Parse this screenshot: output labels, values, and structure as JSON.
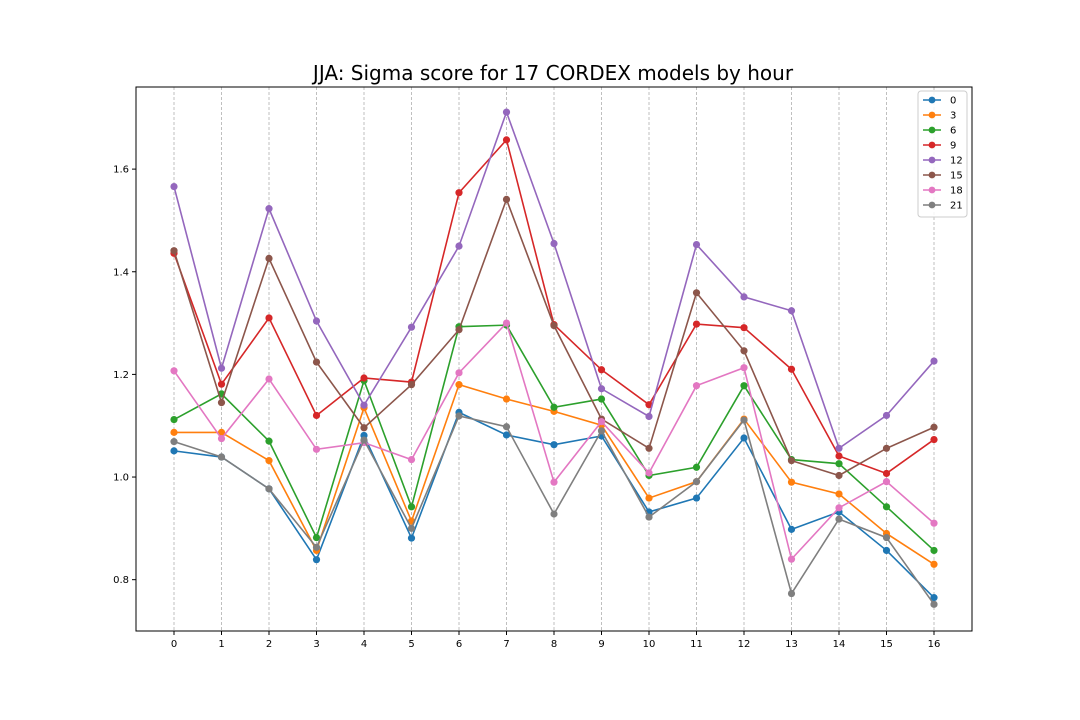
{
  "chart_data": {
    "type": "line",
    "title": "JJA: Sigma score for 17 CORDEX models by hour",
    "xlabel": "",
    "ylabel": "",
    "x": [
      0,
      1,
      2,
      3,
      4,
      5,
      6,
      7,
      8,
      9,
      10,
      11,
      12,
      13,
      14,
      15,
      16
    ],
    "xlim": [
      -0.8,
      16.8
    ],
    "ylim": [
      0.7,
      1.76
    ],
    "yticks": [
      0.8,
      1.0,
      1.2,
      1.4,
      1.6
    ],
    "ytick_labels": [
      "0.8",
      "1.0",
      "1.2",
      "1.4",
      "1.6"
    ],
    "xticks": [
      0,
      1,
      2,
      3,
      4,
      5,
      6,
      7,
      8,
      9,
      10,
      11,
      12,
      13,
      14,
      15,
      16
    ],
    "xtick_labels": [
      "0",
      "1",
      "2",
      "3",
      "4",
      "5",
      "6",
      "7",
      "8",
      "9",
      "10",
      "11",
      "12",
      "13",
      "14",
      "15",
      "16"
    ],
    "grid": "x-axis dashed",
    "legend_position": "top-right",
    "series": [
      {
        "name": "0",
        "color": "#1f77b4",
        "values": [
          1.051,
          1.039,
          0.977,
          0.839,
          1.081,
          0.881,
          1.126,
          1.082,
          1.063,
          1.08,
          0.932,
          0.959,
          1.076,
          0.898,
          0.932,
          0.857,
          0.765
        ]
      },
      {
        "name": "3",
        "color": "#ff7f0e",
        "values": [
          1.087,
          1.087,
          1.032,
          0.857,
          1.135,
          0.914,
          1.18,
          1.152,
          1.128,
          1.101,
          0.959,
          0.991,
          1.113,
          0.99,
          0.967,
          0.89,
          0.83
        ]
      },
      {
        "name": "6",
        "color": "#2ca02c",
        "values": [
          1.112,
          1.162,
          1.07,
          0.882,
          1.188,
          0.942,
          1.293,
          1.296,
          1.136,
          1.152,
          1.003,
          1.019,
          1.178,
          1.034,
          1.026,
          0.942,
          0.857
        ]
      },
      {
        "name": "9",
        "color": "#d62728",
        "values": [
          1.436,
          1.181,
          1.31,
          1.12,
          1.193,
          1.185,
          1.554,
          1.657,
          1.297,
          1.209,
          1.141,
          1.298,
          1.291,
          1.21,
          1.041,
          1.007,
          1.073
        ]
      },
      {
        "name": "12",
        "color": "#9467bd",
        "values": [
          1.566,
          1.212,
          1.523,
          1.304,
          1.14,
          1.292,
          1.45,
          1.711,
          1.455,
          1.172,
          1.118,
          1.453,
          1.351,
          1.324,
          1.056,
          1.12,
          1.226
        ]
      },
      {
        "name": "15",
        "color": "#8c564b",
        "values": [
          1.441,
          1.145,
          1.426,
          1.224,
          1.096,
          1.18,
          1.287,
          1.541,
          1.295,
          1.113,
          1.056,
          1.359,
          1.246,
          1.032,
          1.003,
          1.056,
          1.097
        ]
      },
      {
        "name": "18",
        "color": "#e377c2",
        "values": [
          1.207,
          1.075,
          1.191,
          1.054,
          1.067,
          1.034,
          1.203,
          1.3,
          0.99,
          1.108,
          1.008,
          1.178,
          1.213,
          0.84,
          0.94,
          0.991,
          0.91
        ]
      },
      {
        "name": "21",
        "color": "#7f7f7f",
        "values": [
          1.069,
          1.039,
          0.977,
          0.863,
          1.072,
          0.9,
          1.119,
          1.098,
          0.928,
          1.09,
          0.922,
          0.991,
          1.111,
          0.773,
          0.918,
          0.882,
          0.752
        ]
      }
    ]
  }
}
